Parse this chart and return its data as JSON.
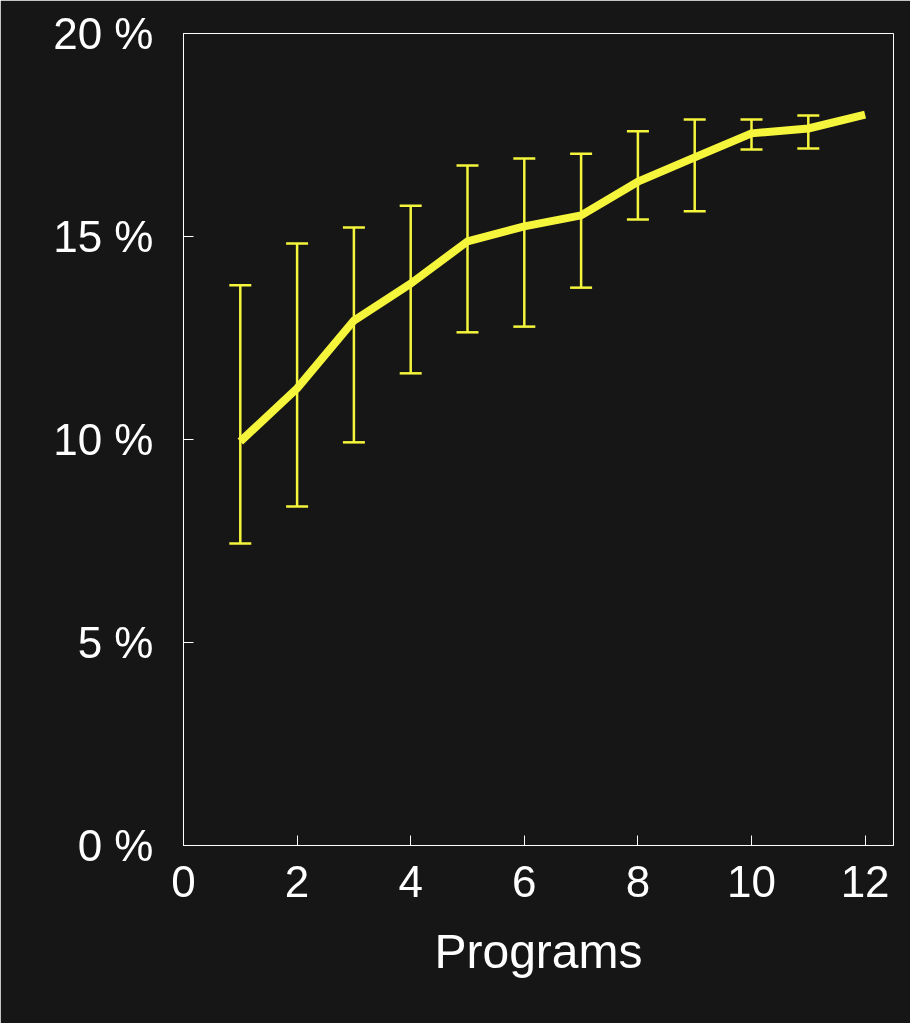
{
  "chart_data": {
    "type": "line",
    "xlabel": "Programs",
    "x": [
      1,
      2,
      3,
      4,
      5,
      6,
      7,
      8,
      9,
      10,
      11,
      12
    ],
    "series": [
      {
        "color": "#f5f53c",
        "values": [
          9.95,
          11.26,
          12.93,
          13.84,
          14.88,
          15.25,
          15.52,
          16.35,
          16.95,
          17.54,
          17.66,
          18.0
        ],
        "errors": [
          [
            7.44,
            13.8
          ],
          [
            8.35,
            14.83
          ],
          [
            9.93,
            15.22
          ],
          [
            11.63,
            15.76
          ],
          [
            12.64,
            16.75
          ],
          [
            12.78,
            16.92
          ],
          [
            13.74,
            17.04
          ],
          [
            15.42,
            17.59
          ],
          [
            15.62,
            17.88
          ],
          [
            17.14,
            17.88
          ],
          [
            17.17,
            17.98
          ],
          null
        ]
      }
    ],
    "xlim": [
      0,
      12.5
    ],
    "xticks": [
      0,
      2,
      4,
      6,
      8,
      10,
      12
    ],
    "ylim": [
      0,
      20
    ],
    "yticks": [
      {
        "value": 0,
        "label": "0 %"
      },
      {
        "value": 5,
        "label": "5 %"
      },
      {
        "value": 10,
        "label": "10 %"
      },
      {
        "value": 15,
        "label": "15 %"
      },
      {
        "value": 20,
        "label": "20 %"
      }
    ],
    "grid": false,
    "marker": "none",
    "line_style": "solid"
  }
}
